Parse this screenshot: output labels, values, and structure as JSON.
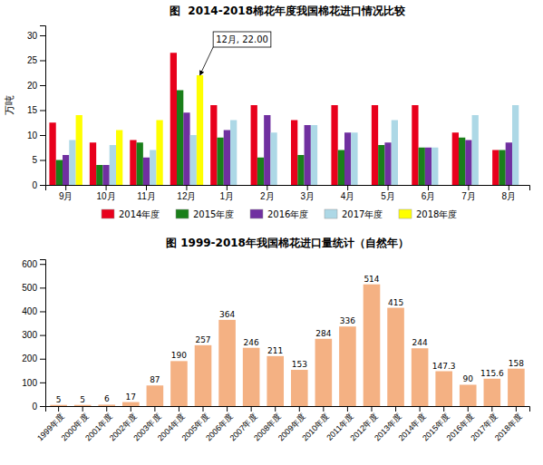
{
  "chart_data": [
    {
      "type": "bar",
      "title": "图  2014-2018棉花年度我国棉花进口情况比较",
      "ylabel": "万吨",
      "categories": [
        "9月",
        "10月",
        "11月",
        "12月",
        "1月",
        "2月",
        "3月",
        "4月",
        "5月",
        "6月",
        "7月",
        "8月"
      ],
      "series": [
        {
          "name": "2014年度",
          "color": "#e8001c",
          "values": [
            12.5,
            8.5,
            9.0,
            26.5,
            16.0,
            16.0,
            13.0,
            16.0,
            16.0,
            16.0,
            10.5,
            7.0
          ]
        },
        {
          "name": "2015年度",
          "color": "#1a7f1a",
          "values": [
            5.0,
            4.0,
            8.5,
            19.0,
            9.5,
            5.5,
            6.0,
            7.0,
            8.0,
            7.5,
            9.5,
            7.0
          ]
        },
        {
          "name": "2016年度",
          "color": "#7030a0",
          "values": [
            6.0,
            4.0,
            5.5,
            14.5,
            11.0,
            14.0,
            12.0,
            10.5,
            8.5,
            7.5,
            9.0,
            8.5
          ]
        },
        {
          "name": "2017年度",
          "color": "#add8e6",
          "values": [
            9.0,
            8.0,
            7.0,
            10.0,
            13.0,
            10.5,
            12.0,
            10.5,
            13.0,
            7.5,
            14.0,
            16.0
          ]
        },
        {
          "name": "2018年度",
          "color": "#ffff00",
          "values": [
            14.0,
            11.0,
            13.0,
            22.0,
            null,
            null,
            null,
            null,
            null,
            null,
            null,
            null
          ]
        }
      ],
      "ylim": [
        0,
        32
      ],
      "yticks": [
        0,
        5,
        10,
        15,
        20,
        25,
        30
      ],
      "grid": false,
      "legend": "bottom",
      "annotations": [
        {
          "text": "12月, 22.00",
          "category": "12月",
          "series": "2018年度",
          "value": 22.0
        }
      ]
    },
    {
      "type": "bar",
      "title": "图 1999-2018年我国棉花进口量统计（自然年）",
      "categories": [
        "1999年度",
        "2000年度",
        "2001年度",
        "2002年度",
        "2003年度",
        "2004年度",
        "2005年度",
        "2006年度",
        "2007年度",
        "2008年度",
        "2009年度",
        "2010年度",
        "2011年度",
        "2012年度",
        "2013年度",
        "2014年度",
        "2015年度",
        "2016年度",
        "2017年度",
        "2018年度"
      ],
      "values": [
        5,
        5,
        6,
        17,
        87,
        190,
        257,
        364,
        246,
        211,
        153,
        284,
        336,
        514,
        415,
        244,
        147.3,
        90,
        115.6,
        158
      ],
      "color": "#f4b183",
      "ylim": [
        0,
        620
      ],
      "yticks": [
        0,
        100,
        200,
        300,
        400,
        500,
        600
      ],
      "grid": false,
      "data_labels": true
    }
  ]
}
